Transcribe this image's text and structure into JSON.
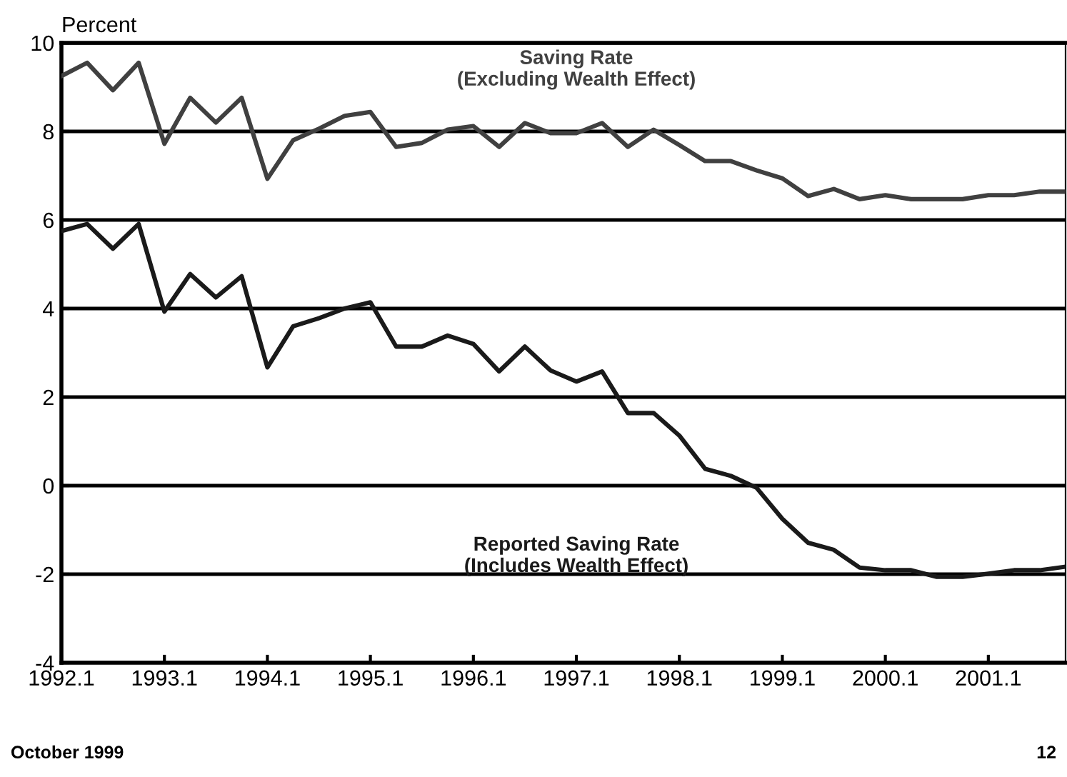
{
  "chart_data": {
    "type": "line",
    "ylabel": "Percent",
    "categories": [
      "1992.1",
      null,
      null,
      null,
      "1993.1",
      null,
      null,
      null,
      "1994.1",
      null,
      null,
      null,
      "1995.1",
      null,
      null,
      null,
      "1996.1",
      null,
      null,
      null,
      "1997.1",
      null,
      null,
      null,
      "1998.1",
      null,
      null,
      null,
      "1999.1",
      null,
      null,
      null,
      "2000.1",
      null,
      null,
      null,
      "2001.1",
      null,
      null,
      null
    ],
    "series": [
      {
        "name": "Saving Rate\n(Excluding Wealth Effect)",
        "color": "#404040",
        "values": [
          9.25,
          9.55,
          8.93,
          9.55,
          7.72,
          8.76,
          8.2,
          8.76,
          6.93,
          7.8,
          8.06,
          8.35,
          8.44,
          7.65,
          7.74,
          8.04,
          8.12,
          7.65,
          8.19,
          7.96,
          7.96,
          8.19,
          7.65,
          8.04,
          7.69,
          7.33,
          7.33,
          7.12,
          6.94,
          6.54,
          6.7,
          6.47,
          6.56,
          6.47,
          6.47,
          6.47,
          6.56,
          6.56,
          6.64,
          6.64
        ]
      },
      {
        "name": "Reported Saving Rate\n(Includes Wealth Effect)",
        "color": "#1a1a1a",
        "values": [
          5.75,
          5.91,
          5.35,
          5.91,
          3.93,
          4.78,
          4.25,
          4.73,
          2.67,
          3.6,
          3.78,
          4.0,
          4.14,
          3.14,
          3.14,
          3.39,
          3.2,
          2.58,
          3.14,
          2.6,
          2.35,
          2.58,
          1.64,
          1.64,
          1.13,
          0.38,
          0.22,
          -0.05,
          -0.75,
          -1.29,
          -1.45,
          -1.85,
          -1.91,
          -1.91,
          -2.06,
          -2.06,
          -1.99,
          -1.91,
          -1.91,
          -1.83
        ]
      }
    ],
    "ylim": [
      -4,
      10
    ],
    "yticks": [
      -4,
      -2,
      0,
      2,
      4,
      6,
      8,
      10
    ],
    "grid": "y",
    "marker": "none",
    "line_style": "solid",
    "legend": false,
    "annotations": [
      "October 1999",
      "12"
    ]
  }
}
